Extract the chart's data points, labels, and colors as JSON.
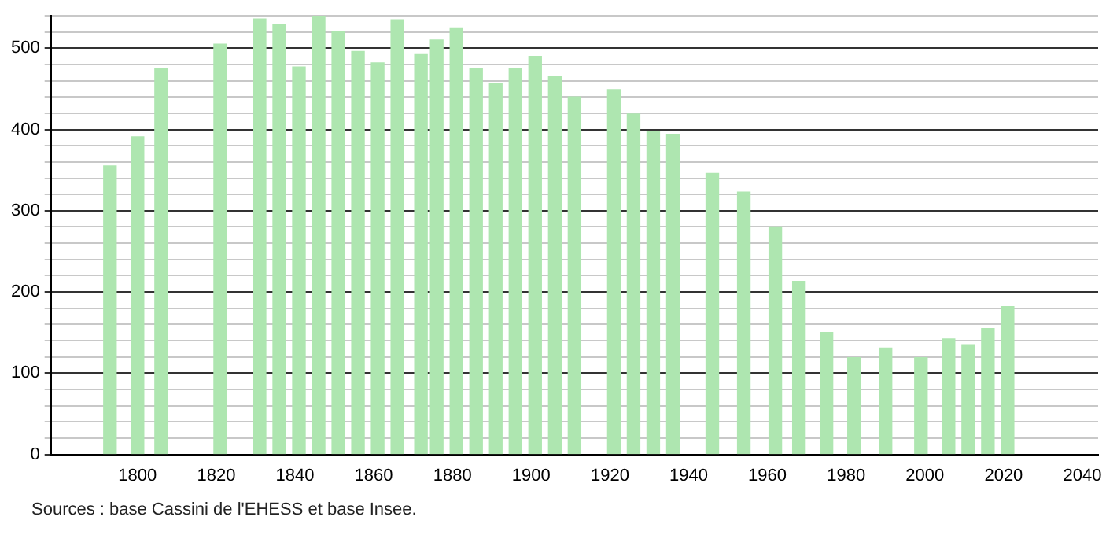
{
  "chart_data": {
    "type": "bar",
    "x": [
      1793,
      1800,
      1806,
      1821,
      1831,
      1836,
      1841,
      1846,
      1851,
      1856,
      1861,
      1866,
      1872,
      1876,
      1881,
      1886,
      1891,
      1896,
      1901,
      1906,
      1911,
      1921,
      1926,
      1931,
      1936,
      1946,
      1954,
      1962,
      1968,
      1975,
      1982,
      1990,
      1999,
      2006,
      2011,
      2016,
      2021
    ],
    "values": [
      355,
      391,
      475,
      505,
      536,
      529,
      477,
      540,
      520,
      496,
      482,
      535,
      493,
      510,
      525,
      475,
      456,
      475,
      490,
      465,
      440,
      449,
      419,
      398,
      394,
      346,
      323,
      280,
      213,
      150,
      119,
      131,
      119,
      142,
      135,
      155,
      182
    ],
    "color": "#aee6b0",
    "xlim": [
      1778,
      2044
    ],
    "xticks": [
      1800,
      1820,
      1840,
      1860,
      1880,
      1900,
      1920,
      1940,
      1960,
      1980,
      2000,
      2020,
      2040
    ],
    "ylim": [
      0,
      540
    ],
    "yticks": [
      0,
      {
        "value": 20,
        "label": null
      },
      {
        "value": 40,
        "label": null
      },
      {
        "value": 60,
        "label": null
      },
      {
        "value": 80,
        "label": null
      },
      100,
      {
        "value": 120,
        "label": null
      },
      {
        "value": 140,
        "label": null
      },
      {
        "value": 160,
        "label": null
      },
      {
        "value": 180,
        "label": null
      },
      200,
      {
        "value": 220,
        "label": null
      },
      {
        "value": 240,
        "label": null
      },
      {
        "value": 260,
        "label": null
      },
      {
        "value": 280,
        "label": null
      },
      300,
      {
        "value": 320,
        "label": null
      },
      {
        "value": 340,
        "label": null
      },
      {
        "value": 360,
        "label": null
      },
      {
        "value": 380,
        "label": null
      },
      400,
      {
        "value": 420,
        "label": null
      },
      {
        "value": 440,
        "label": null
      },
      {
        "value": 460,
        "label": null
      },
      {
        "value": 480,
        "label": null
      },
      500,
      {
        "value": 520,
        "label": null
      },
      {
        "value": 540,
        "label": null
      }
    ],
    "grid": "y",
    "annotations": [
      "Sources : base Cassini de l'EHESS et base Insee."
    ]
  }
}
